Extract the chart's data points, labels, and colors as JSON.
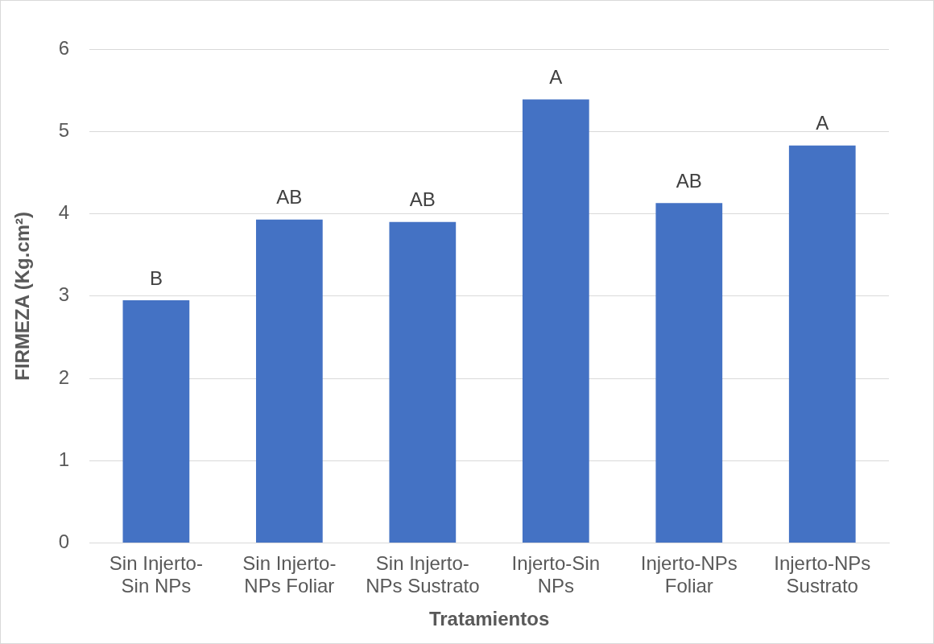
{
  "chart_data": {
    "type": "bar",
    "xlabel": "Tratamientos",
    "ylabel": "FIRMEZA (Kg.cm²)",
    "categories": [
      "Sin Injerto-Sin NPs",
      "Sin Injerto-NPs Foliar",
      "Sin Injerto-NPs Sustrato",
      "Injerto-Sin NPs",
      "Injerto-NPs Foliar",
      "Injerto-NPs Sustrato"
    ],
    "values": [
      2.95,
      3.93,
      3.9,
      5.39,
      4.13,
      4.83
    ],
    "color": "#4472c4",
    "ylim": [
      0,
      6
    ],
    "yticks": [
      0,
      1,
      2,
      3,
      4,
      5,
      6
    ],
    "grid": "y",
    "legend": false,
    "annotations": [
      {
        "text": "B",
        "x": "Sin Injerto-Sin NPs",
        "y": 2.95
      },
      {
        "text": "AB",
        "x": "Sin Injerto-NPs Foliar",
        "y": 3.93
      },
      {
        "text": "AB",
        "x": "Sin Injerto-NPs Sustrato",
        "y": 3.9
      },
      {
        "text": "A",
        "x": "Injerto-Sin NPs",
        "y": 5.39
      },
      {
        "text": "AB",
        "x": "Injerto-NPs Foliar",
        "y": 4.13
      },
      {
        "text": "A",
        "x": "Injerto-NPs Sustrato",
        "y": 4.83
      }
    ]
  }
}
